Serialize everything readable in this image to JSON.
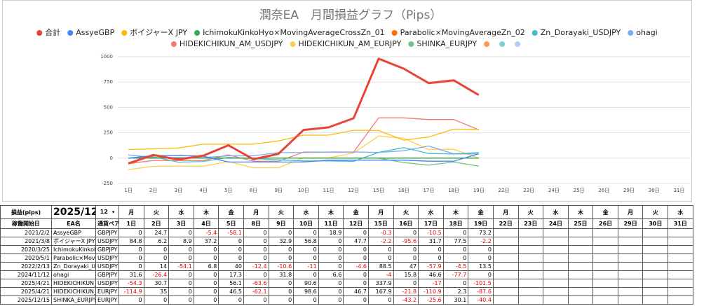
{
  "chart_data": {
    "type": "line",
    "title": "潤奈EA　月間損益グラフ（Pips）",
    "categories": [
      "1日",
      "2日",
      "3日",
      "4日",
      "5日",
      "8日",
      "9日",
      "10日",
      "11日",
      "12日",
      "15日",
      "16日",
      "17日",
      "18日",
      "19日",
      "22日",
      "23日",
      "24日",
      "25日",
      "26日",
      "29日",
      "30日",
      "31日"
    ],
    "ylim": [
      -250,
      1000
    ],
    "yticks": [
      -250,
      0,
      250,
      500,
      750,
      1000
    ],
    "grid": true,
    "series": [
      {
        "name": "合計",
        "color": "#ea4335",
        "values": [
          -52.8,
          31.4,
          -13.8,
          24.8,
          126.6,
          -11.5,
          42.6,
          277.6,
          303.1,
          392.9,
          980.7,
          882.9,
          739.3,
          767,
          622,
          null,
          null,
          null,
          null,
          null,
          null,
          null,
          null
        ]
      },
      {
        "name": "AssyeGBP",
        "color": "#4285f4",
        "values": [
          0,
          24.7,
          24.7,
          19.3,
          -38.8,
          -38.8,
          -38.8,
          -38.8,
          -19.9,
          -19.9,
          -20.2,
          -20.2,
          -30.7,
          -30.7,
          42.5,
          null,
          null,
          null,
          null,
          null,
          null,
          null,
          null
        ]
      },
      {
        "name": "ボイジャーX JPY",
        "color": "#fbbc04",
        "values": [
          84.8,
          91,
          99.9,
          137.1,
          137.1,
          137.1,
          170,
          226.8,
          226.8,
          274.5,
          272.3,
          176.7,
          208.4,
          285.9,
          283.7,
          null,
          null,
          null,
          null,
          null,
          null,
          null,
          null
        ]
      },
      {
        "name": "IchimokuKinkoHyo×MovingAverageCrossZn_01",
        "color": "#34a853",
        "values": [
          0,
          0,
          0,
          0,
          0,
          0,
          0,
          0,
          0,
          0,
          0,
          0,
          0,
          0,
          0,
          null,
          null,
          null,
          null,
          null,
          null,
          null,
          null
        ]
      },
      {
        "name": "Parabolic×MovingAverageZn_02",
        "color": "#ff6d01",
        "values": [
          0,
          0,
          0,
          0,
          0,
          0,
          0,
          0,
          0,
          0,
          0,
          0,
          0,
          0,
          0,
          null,
          null,
          null,
          null,
          null,
          null,
          null,
          null
        ]
      },
      {
        "name": "Zn_Dorayaki_USDJPY",
        "color": "#46bdc6",
        "values": [
          0,
          14,
          -40.1,
          -33.3,
          6.7,
          -5.7,
          -16.3,
          -27.3,
          -27.3,
          -31.9,
          56.6,
          103.6,
          45.7,
          41.2,
          54.7,
          null,
          null,
          null,
          null,
          null,
          null,
          null,
          null
        ]
      },
      {
        "name": "ohagi",
        "color": "#7baaf7",
        "values": [
          31.6,
          5.2,
          5.2,
          5.2,
          22.5,
          22.5,
          54.3,
          54.3,
          60.9,
          60.9,
          56.9,
          72.7,
          119.3,
          41.6,
          41.6,
          null,
          null,
          null,
          null,
          null,
          null,
          null,
          null
        ]
      },
      {
        "name": "HIDEKICHIKUN_AM_USDJPY",
        "color": "#f07b72",
        "values": [
          -54.3,
          -23.6,
          -23.6,
          -23.6,
          32.5,
          -31.1,
          -31.1,
          59.5,
          59.5,
          59.5,
          397.4,
          397.4,
          380.4,
          380.4,
          278.9,
          null,
          null,
          null,
          null,
          null,
          null,
          null,
          null
        ]
      },
      {
        "name": "HIDEKICHIKUN_AM_EURJPY",
        "color": "#fcd04f",
        "values": [
          -114.9,
          -79.9,
          -79.9,
          -79.9,
          -33.4,
          -95.5,
          -95.5,
          3.1,
          3.1,
          49.8,
          217.7,
          195.9,
          85,
          87.3,
          -0.3,
          null,
          null,
          null,
          null,
          null,
          null,
          null,
          null
        ]
      },
      {
        "name": "SHINKA_EURJPY",
        "color": "#71c287",
        "values": [
          null,
          null,
          null,
          null,
          null,
          null,
          null,
          null,
          null,
          null,
          0,
          -43.2,
          -68.8,
          -38.7,
          -79.1,
          null,
          null,
          null,
          null,
          null,
          null,
          null,
          null
        ]
      },
      {
        "name": null,
        "color": "#ff994d",
        "values": [
          null,
          null,
          null,
          null,
          null,
          null,
          null,
          null,
          null,
          null,
          null,
          null,
          null,
          null,
          null,
          null,
          null,
          null,
          null,
          null,
          null,
          null,
          null
        ]
      },
      {
        "name": null,
        "color": "#7ed1d7",
        "values": [
          null,
          null,
          null,
          null,
          null,
          null,
          null,
          null,
          null,
          null,
          null,
          null,
          null,
          null,
          null,
          null,
          null,
          null,
          null,
          null,
          null,
          null,
          null
        ]
      },
      {
        "name": null,
        "color": "#b3cefb",
        "values": [
          null,
          null,
          null,
          null,
          null,
          null,
          null,
          null,
          null,
          null,
          null,
          null,
          null,
          null,
          null,
          null,
          null,
          null,
          null,
          null,
          null,
          null,
          null
        ]
      }
    ]
  },
  "table": {
    "title": "損益(pips)",
    "month": "2025/12",
    "month_select": "12",
    "weekdays": [
      "月",
      "火",
      "水",
      "木",
      "金",
      "月",
      "火",
      "水",
      "木",
      "金",
      "月",
      "火",
      "水",
      "木",
      "金",
      "月",
      "火",
      "水",
      "木",
      "金",
      "月",
      "火",
      "水"
    ],
    "headers": [
      "稼働開始日",
      "EA名",
      "通貨ペア"
    ],
    "rows": [
      {
        "start": "2021/2/2",
        "name": "AssyeGBP",
        "pair": "GBPJPY",
        "values": [
          0,
          24.7,
          0,
          -5.4,
          -58.1,
          0,
          0,
          0,
          18.9,
          0,
          -0.3,
          0,
          -10.5,
          0,
          73.2
        ]
      },
      {
        "start": "2021/3/8",
        "name": "ボイジャーX JPY",
        "pair": "USDJPY",
        "values": [
          84.8,
          6.2,
          8.9,
          37.2,
          0,
          0,
          32.9,
          56.8,
          0,
          47.7,
          -2.2,
          -95.6,
          31.7,
          77.5,
          -2.2
        ]
      },
      {
        "start": "2020/3/25",
        "name": "IchimokuKinkoHyo×Movi",
        "pair": "GBPJPY",
        "values": [
          0,
          0,
          0,
          0,
          0,
          0,
          0,
          0,
          0,
          0,
          0,
          0,
          0,
          0,
          0
        ]
      },
      {
        "start": "2020/5/1",
        "name": "Parabolic×MovingAverage",
        "pair": "USDJPY",
        "values": [
          0,
          0,
          0,
          0,
          0,
          0,
          0,
          0,
          0,
          0,
          0,
          0,
          0,
          0,
          0
        ]
      },
      {
        "start": "2022/2/13",
        "name": "Zn_Dorayaki_USDJPY",
        "pair": "USDJPY",
        "values": [
          0,
          14,
          -54.1,
          6.8,
          40,
          -12.4,
          -10.6,
          -11,
          0,
          -4.6,
          88.5,
          47,
          -57.9,
          -4.5,
          13.5
        ]
      },
      {
        "start": "2024/11/12",
        "name": "ohagi",
        "pair": "GBPJPY",
        "values": [
          31.6,
          -26.4,
          0,
          0,
          17.3,
          0,
          31.8,
          0,
          6.6,
          0,
          -4,
          15.8,
          46.6,
          -77.7,
          0
        ]
      },
      {
        "start": "2025/4/21",
        "name": "HIDEKICHIKUN_AM_US",
        "pair": "USDJPY",
        "values": [
          -54.3,
          30.7,
          0,
          0,
          56.1,
          -63.6,
          0,
          90.6,
          0,
          0,
          337.9,
          0,
          -17,
          0,
          -101.5
        ]
      },
      {
        "start": "2025/4/21",
        "name": "HIDEKICHIKUN_AM_EU",
        "pair": "EURJPY",
        "values": [
          -114.9,
          35,
          0,
          0,
          46.5,
          -62.1,
          0,
          98.6,
          0,
          46.7,
          167.9,
          -21.8,
          -110.9,
          2.3,
          -87.6
        ]
      },
      {
        "start": "2025/12/15",
        "name": "SHINKA_EURJPY",
        "pair": "EURJPY",
        "values": [
          0,
          0,
          0,
          0,
          0,
          0,
          0,
          0,
          0,
          0,
          0,
          -43.2,
          -25.6,
          30.1,
          -40.4
        ]
      }
    ]
  }
}
